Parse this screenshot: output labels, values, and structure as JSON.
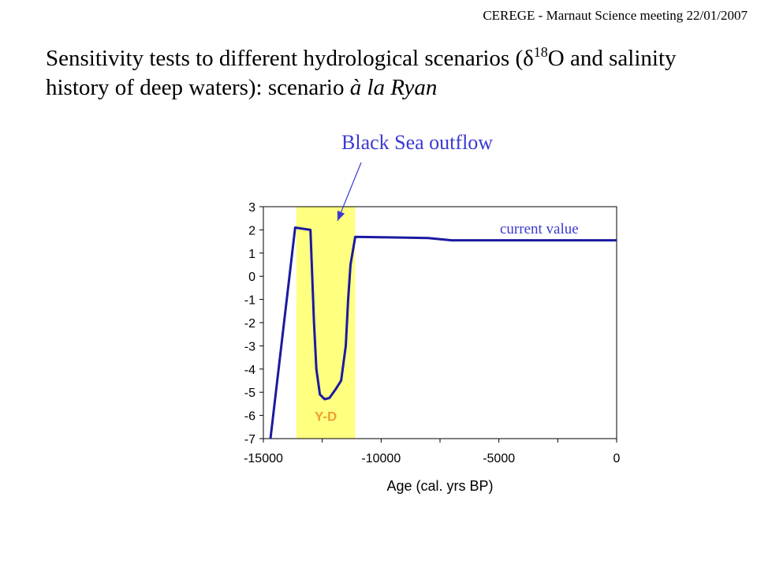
{
  "header": {
    "meeting": "CEREGE - Marnaut Science meeting 22/01/2007"
  },
  "slide": {
    "title_part1": "Sensitivity tests to different hydrological scenarios (",
    "delta": "δ",
    "sup": "18",
    "title_part2": "O and salinity history of deep waters): scenario ",
    "title_italic": "à la Ryan"
  },
  "annotations": {
    "black_sea": "Black Sea outflow",
    "current_value": "current value",
    "yd_label": "Y-D"
  },
  "colors": {
    "line": "#1a1aa0",
    "highlight": "#ffff80",
    "annotation": "#3a3ad0",
    "yd": "#f0a030"
  },
  "chart_data": {
    "type": "line",
    "title": "",
    "xlabel": "Age (cal. yrs BP)",
    "ylabel": "",
    "xlim": [
      -15000,
      0
    ],
    "ylim": [
      -7,
      3
    ],
    "x_ticks": [
      -15000,
      -10000,
      -5000,
      0
    ],
    "x_tick_labels": [
      "-15000",
      "-10000",
      "-5000",
      "0"
    ],
    "y_ticks": [
      3,
      2,
      1,
      0,
      -1,
      -2,
      -3,
      -4,
      -5,
      -6,
      -7
    ],
    "y_tick_labels": [
      "3",
      "2",
      "1",
      "0",
      "-1",
      "-2",
      "-3",
      "-4",
      "-5",
      "-6",
      "-7"
    ],
    "highlight_band": {
      "x_start": -13600,
      "x_end": -11100,
      "label": "Y-D"
    },
    "series": [
      {
        "x": [
          -14700,
          -13650,
          -13000,
          -12850,
          -12750,
          -12600,
          -12400,
          -12200,
          -11950,
          -11700,
          -11500,
          -11400,
          -11300,
          -11100,
          -8000,
          -7000,
          0
        ],
        "y": [
          -7.0,
          2.1,
          2.0,
          -2.0,
          -4.0,
          -5.1,
          -5.3,
          -5.25,
          -4.9,
          -4.5,
          -3.0,
          -1.0,
          0.5,
          1.7,
          1.65,
          1.55,
          1.55
        ]
      }
    ]
  }
}
